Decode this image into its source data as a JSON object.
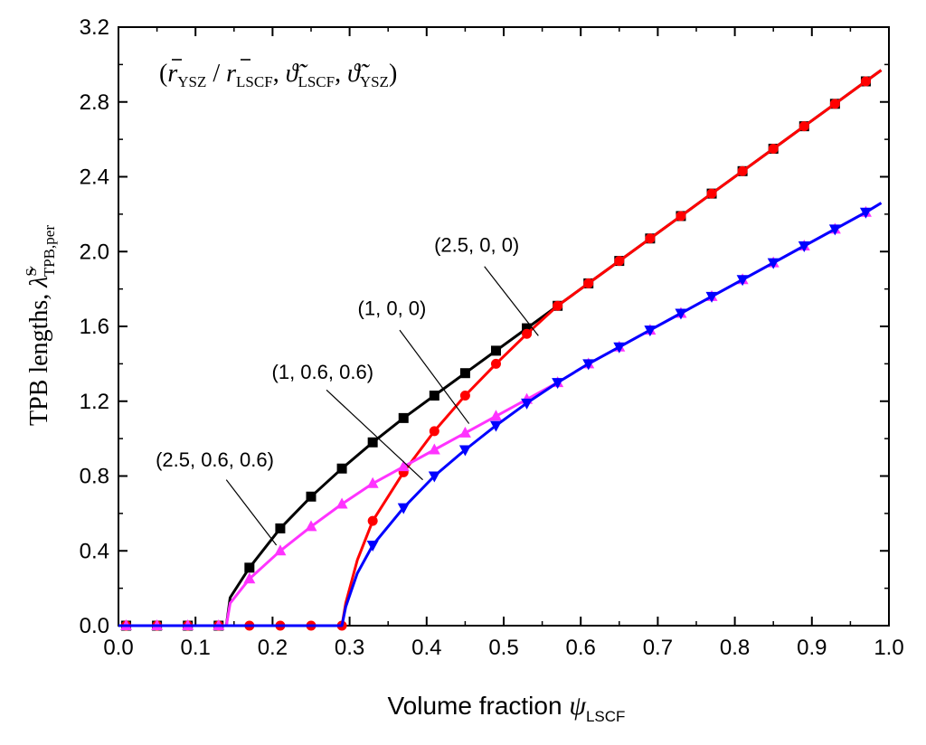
{
  "chart_data": {
    "type": "line",
    "xlabel_main": "Volume fraction ",
    "xlabel_symbol": "ψ",
    "xlabel_sub": "LSCF",
    "ylabel_main": "TPB lengths, ",
    "ylabel_symbol": "λ̃",
    "ylabel_sup": "S",
    "ylabel_sub": "TPB,per",
    "xlim": [
      0.0,
      1.0
    ],
    "ylim": [
      0.0,
      3.2
    ],
    "xticks": [
      "0.0",
      "0.1",
      "0.2",
      "0.3",
      "0.4",
      "0.5",
      "0.6",
      "0.7",
      "0.8",
      "0.9",
      "1.0"
    ],
    "yticks": [
      "0.0",
      "0.4",
      "0.8",
      "1.2",
      "1.6",
      "2.0",
      "2.4",
      "2.8",
      "3.2"
    ],
    "legend_formula": {
      "open": "(",
      "r_ysz": "r",
      "r_ysz_sub": "YSZ",
      "slash": " / ",
      "r_lscf": "r",
      "r_lscf_sub": "LSCF",
      "sep1": ", ",
      "theta1": "ϑ̃",
      "theta1_sub": "LSCF",
      "sep2": ", ",
      "theta2": "ϑ̃",
      "theta2_sub": "YSZ",
      "close": ")"
    },
    "series": [
      {
        "name": "(2.5, 0, 0)",
        "color": "#000000",
        "marker": "square",
        "curve": [
          [
            0,
            0
          ],
          [
            0.13,
            0
          ],
          [
            0.14,
            0
          ],
          [
            0.145,
            0.15
          ],
          [
            0.17,
            0.31
          ],
          [
            0.21,
            0.52
          ],
          [
            0.25,
            0.69
          ],
          [
            0.29,
            0.84
          ],
          [
            0.33,
            0.98
          ],
          [
            0.37,
            1.11
          ],
          [
            0.41,
            1.23
          ],
          [
            0.45,
            1.35
          ],
          [
            0.49,
            1.47
          ],
          [
            0.53,
            1.59
          ],
          [
            0.57,
            1.71
          ],
          [
            0.61,
            1.83
          ],
          [
            0.65,
            1.95
          ],
          [
            0.69,
            2.07
          ],
          [
            0.73,
            2.19
          ],
          [
            0.77,
            2.31
          ],
          [
            0.81,
            2.43
          ],
          [
            0.85,
            2.55
          ],
          [
            0.89,
            2.67
          ],
          [
            0.93,
            2.79
          ],
          [
            0.97,
            2.91
          ],
          [
            0.99,
            2.97
          ]
        ],
        "points": [
          [
            0.01,
            0
          ],
          [
            0.05,
            0
          ],
          [
            0.09,
            0
          ],
          [
            0.13,
            0
          ],
          [
            0.17,
            0.31
          ],
          [
            0.21,
            0.52
          ],
          [
            0.25,
            0.69
          ],
          [
            0.29,
            0.84
          ],
          [
            0.33,
            0.98
          ],
          [
            0.37,
            1.11
          ],
          [
            0.41,
            1.23
          ],
          [
            0.45,
            1.35
          ],
          [
            0.49,
            1.47
          ],
          [
            0.53,
            1.59
          ],
          [
            0.57,
            1.71
          ],
          [
            0.61,
            1.83
          ],
          [
            0.65,
            1.95
          ],
          [
            0.69,
            2.07
          ],
          [
            0.73,
            2.19
          ],
          [
            0.77,
            2.31
          ],
          [
            0.81,
            2.43
          ],
          [
            0.85,
            2.55
          ],
          [
            0.89,
            2.67
          ],
          [
            0.93,
            2.79
          ],
          [
            0.97,
            2.91
          ]
        ]
      },
      {
        "name": "(1, 0, 0)",
        "color": "#ff0000",
        "marker": "circle",
        "curve": [
          [
            0,
            0
          ],
          [
            0.29,
            0
          ],
          [
            0.295,
            0.12
          ],
          [
            0.31,
            0.35
          ],
          [
            0.33,
            0.56
          ],
          [
            0.37,
            0.82
          ],
          [
            0.41,
            1.04
          ],
          [
            0.45,
            1.23
          ],
          [
            0.49,
            1.4
          ],
          [
            0.53,
            1.56
          ],
          [
            0.57,
            1.71
          ],
          [
            0.61,
            1.83
          ],
          [
            0.65,
            1.95
          ],
          [
            0.69,
            2.07
          ],
          [
            0.73,
            2.19
          ],
          [
            0.77,
            2.31
          ],
          [
            0.81,
            2.43
          ],
          [
            0.85,
            2.55
          ],
          [
            0.89,
            2.67
          ],
          [
            0.93,
            2.79
          ],
          [
            0.97,
            2.91
          ],
          [
            0.99,
            2.97
          ]
        ],
        "points": [
          [
            0.01,
            0
          ],
          [
            0.05,
            0
          ],
          [
            0.09,
            0
          ],
          [
            0.13,
            0
          ],
          [
            0.17,
            0
          ],
          [
            0.21,
            0
          ],
          [
            0.25,
            0
          ],
          [
            0.29,
            0
          ],
          [
            0.33,
            0.56
          ],
          [
            0.37,
            0.82
          ],
          [
            0.41,
            1.04
          ],
          [
            0.45,
            1.23
          ],
          [
            0.49,
            1.4
          ],
          [
            0.53,
            1.56
          ],
          [
            0.57,
            1.71
          ],
          [
            0.61,
            1.83
          ],
          [
            0.65,
            1.95
          ],
          [
            0.69,
            2.07
          ],
          [
            0.73,
            2.19
          ],
          [
            0.77,
            2.31
          ],
          [
            0.81,
            2.43
          ],
          [
            0.85,
            2.55
          ],
          [
            0.89,
            2.67
          ],
          [
            0.93,
            2.79
          ],
          [
            0.97,
            2.91
          ]
        ]
      },
      {
        "name": "(1, 0.6, 0.6)",
        "color": "#ff33ff",
        "marker": "triangle-up",
        "curve": [
          [
            0,
            0
          ],
          [
            0.14,
            0
          ],
          [
            0.145,
            0.12
          ],
          [
            0.17,
            0.25
          ],
          [
            0.21,
            0.4
          ],
          [
            0.25,
            0.53
          ],
          [
            0.29,
            0.65
          ],
          [
            0.33,
            0.76
          ],
          [
            0.37,
            0.85
          ],
          [
            0.41,
            0.94
          ],
          [
            0.45,
            1.03
          ],
          [
            0.49,
            1.12
          ],
          [
            0.53,
            1.21
          ],
          [
            0.57,
            1.3
          ],
          [
            0.61,
            1.4
          ],
          [
            0.65,
            1.49
          ],
          [
            0.69,
            1.58
          ],
          [
            0.73,
            1.67
          ],
          [
            0.77,
            1.76
          ],
          [
            0.81,
            1.85
          ],
          [
            0.85,
            1.94
          ],
          [
            0.89,
            2.03
          ],
          [
            0.93,
            2.12
          ],
          [
            0.97,
            2.21
          ],
          [
            0.99,
            2.26
          ]
        ],
        "points": [
          [
            0.01,
            0
          ],
          [
            0.05,
            0
          ],
          [
            0.09,
            0
          ],
          [
            0.13,
            0
          ],
          [
            0.17,
            0.25
          ],
          [
            0.21,
            0.4
          ],
          [
            0.25,
            0.53
          ],
          [
            0.29,
            0.65
          ],
          [
            0.33,
            0.76
          ],
          [
            0.37,
            0.85
          ],
          [
            0.41,
            0.94
          ],
          [
            0.45,
            1.03
          ],
          [
            0.49,
            1.12
          ],
          [
            0.53,
            1.21
          ],
          [
            0.57,
            1.3
          ],
          [
            0.61,
            1.4
          ],
          [
            0.65,
            1.49
          ],
          [
            0.69,
            1.58
          ],
          [
            0.73,
            1.67
          ],
          [
            0.77,
            1.76
          ],
          [
            0.81,
            1.85
          ],
          [
            0.85,
            1.94
          ],
          [
            0.89,
            2.03
          ],
          [
            0.93,
            2.12
          ],
          [
            0.97,
            2.21
          ]
        ]
      },
      {
        "name": "(2.5, 0.6, 0.6)",
        "color": "#0000ff",
        "marker": "triangle-down",
        "curve": [
          [
            0,
            0
          ],
          [
            0.29,
            0
          ],
          [
            0.295,
            0.1
          ],
          [
            0.31,
            0.28
          ],
          [
            0.33,
            0.43
          ],
          [
            0.37,
            0.63
          ],
          [
            0.41,
            0.8
          ],
          [
            0.45,
            0.94
          ],
          [
            0.49,
            1.07
          ],
          [
            0.53,
            1.19
          ],
          [
            0.57,
            1.3
          ],
          [
            0.61,
            1.4
          ],
          [
            0.65,
            1.49
          ],
          [
            0.69,
            1.58
          ],
          [
            0.73,
            1.67
          ],
          [
            0.77,
            1.76
          ],
          [
            0.81,
            1.85
          ],
          [
            0.85,
            1.94
          ],
          [
            0.89,
            2.03
          ],
          [
            0.93,
            2.12
          ],
          [
            0.97,
            2.21
          ],
          [
            0.99,
            2.26
          ]
        ],
        "points": [
          [
            0.33,
            0.43
          ],
          [
            0.37,
            0.63
          ],
          [
            0.41,
            0.8
          ],
          [
            0.45,
            0.94
          ],
          [
            0.49,
            1.07
          ],
          [
            0.53,
            1.19
          ],
          [
            0.57,
            1.3
          ],
          [
            0.61,
            1.4
          ],
          [
            0.65,
            1.49
          ],
          [
            0.69,
            1.58
          ],
          [
            0.73,
            1.67
          ],
          [
            0.77,
            1.76
          ],
          [
            0.81,
            1.85
          ],
          [
            0.85,
            1.94
          ],
          [
            0.89,
            2.03
          ],
          [
            0.93,
            2.12
          ],
          [
            0.97,
            2.21
          ]
        ]
      }
    ],
    "annotations": [
      {
        "text": "(2.5, 0, 0)",
        "text_at": [
          0.465,
          2.0
        ],
        "arrow_from": [
          0.475,
          1.92
        ],
        "arrow_to": [
          0.545,
          1.55
        ]
      },
      {
        "text": "(1, 0, 0)",
        "text_at": [
          0.355,
          1.66
        ],
        "arrow_from": [
          0.365,
          1.58
        ],
        "arrow_to": [
          0.455,
          1.08
        ]
      },
      {
        "text": "(1, 0.6, 0.6)",
        "text_at": [
          0.265,
          1.32
        ],
        "arrow_from": [
          0.27,
          1.26
        ],
        "arrow_to": [
          0.395,
          0.78
        ]
      },
      {
        "text": "(2.5, 0.6, 0.6)",
        "text_at": [
          0.125,
          0.85
        ],
        "arrow_from": [
          0.14,
          0.78
        ],
        "arrow_to": [
          0.205,
          0.43
        ]
      }
    ]
  }
}
